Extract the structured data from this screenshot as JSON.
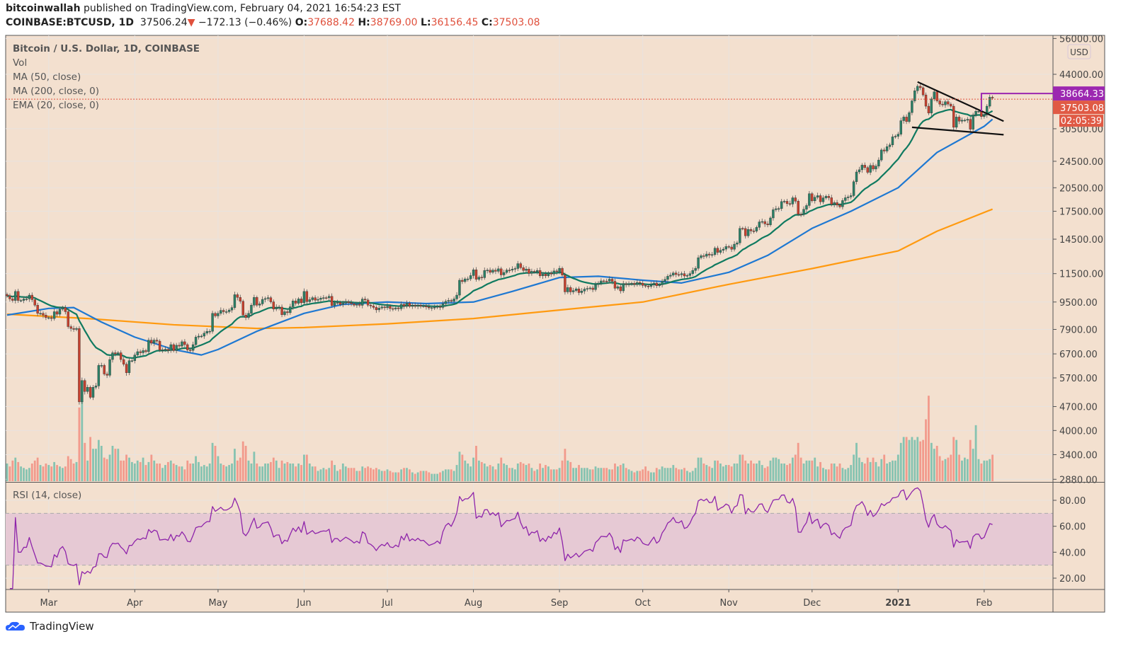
{
  "header": {
    "author": "bitcoinwallah",
    "published": "published on TradingView.com, February 04, 2021 16:54:23 EST",
    "symbol": "COINBASE:BTCUSD, 1D",
    "last": "37506.24",
    "change": "−172.13 (−0.46%)",
    "open_label": "O:",
    "open": "37688.42",
    "high_label": "H:",
    "high": "38769.00",
    "low_label": "L:",
    "low": "36156.45",
    "close_label": "C:",
    "close": "37503.08"
  },
  "legend": {
    "title": "Bitcoin / U.S. Dollar, 1D, COINBASE",
    "vol": "Vol",
    "ma50": "MA (50, close)",
    "ma200": "MA (200, close, 0)",
    "ema20": "EMA (20, close, 0)",
    "rsi": "RSI (14, close)"
  },
  "footer": {
    "brand": "TradingView"
  },
  "colors": {
    "background": "#f3e0cf",
    "up": "#2a8066",
    "down": "#c8402e",
    "vol_up": "#86c3b1",
    "vol_down": "#f29a8c",
    "ma50": "#1e78d2",
    "ma200": "#ff9a10",
    "ema20": "#0f7a60",
    "rsi": "#8e24aa",
    "rsi_band": "#e6c9d4",
    "horizontal_line": "#9c27b0",
    "price_label": "#e05a45"
  },
  "chart_data": {
    "type": "candlestick",
    "yscale": "log",
    "currency": "USD",
    "start_date": "2020-02-15",
    "closes": [
      9900,
      9700,
      9600,
      10200,
      9600,
      9600,
      9700,
      9700,
      9950,
      9650,
      9300,
      8800,
      8800,
      8700,
      8550,
      8550,
      8500,
      8900,
      8750,
      9050,
      9150,
      8900,
      8050,
      7950,
      7900,
      7950,
      4850,
      5600,
      5200,
      5350,
      5000,
      5350,
      5400,
      6200,
      6200,
      5850,
      5800,
      6450,
      6750,
      6700,
      6750,
      6450,
      6250,
      5900,
      6400,
      6400,
      6650,
      6800,
      6750,
      6850,
      6800,
      7350,
      7200,
      7350,
      7300,
      6870,
      6890,
      6910,
      6860,
      7130,
      6850,
      7100,
      7060,
      7270,
      7130,
      6880,
      6860,
      7130,
      7500,
      7550,
      7550,
      7700,
      7800,
      7800,
      8800,
      8650,
      8800,
      8980,
      8900,
      8900,
      9000,
      9150,
      9980,
      9800,
      9550,
      8700,
      8560,
      8800,
      9300,
      9800,
      9300,
      9380,
      9670,
      9720,
      9780,
      9510,
      9060,
      9170,
      9180,
      8720,
      8900,
      8840,
      9200,
      9570,
      9420,
      9700,
      9450,
      10200,
      9520,
      9650,
      9780,
      9620,
      9670,
      9750,
      9780,
      9770,
      9870,
      9280,
      9470,
      9470,
      9340,
      9430,
      9520,
      9460,
      9390,
      9300,
      9360,
      9290,
      9690,
      9630,
      9300,
      9250,
      9160,
      9010,
      9120,
      9190,
      9140,
      9230,
      9090,
      9070,
      9130,
      9080,
      9350,
      9250,
      9430,
      9230,
      9290,
      9240,
      9300,
      9240,
      9250,
      9190,
      9130,
      9150,
      9170,
      9210,
      9160,
      9390,
      9540,
      9600,
      9550,
      9700,
      9950,
      11000,
      10900,
      11100,
      11100,
      11350,
      11800,
      11070,
      11230,
      11190,
      11750,
      11770,
      11600,
      11770,
      11680,
      11880,
      11400,
      11590,
      11780,
      11770,
      11850,
      11900,
      12300,
      11970,
      11750,
      11860,
      11520,
      11680,
      11650,
      11750,
      11330,
      11460,
      11330,
      11540,
      11470,
      11710,
      11650,
      11920,
      11390,
      10170,
      10470,
      10170,
      10260,
      10380,
      10120,
      10230,
      10360,
      10400,
      10440,
      10330,
      10680,
      10790,
      10950,
      10940,
      10930,
      11080,
      10920,
      10420,
      10530,
      10240,
      10740,
      10690,
      10730,
      10770,
      10690,
      10840,
      10780,
      10620,
      10570,
      10550,
      10670,
      10790,
      10600,
      10670,
      10920,
      11060,
      11300,
      11380,
      11550,
      11430,
      11420,
      11500,
      11320,
      11360,
      11500,
      11750,
      11920,
      12800,
      12970,
      12930,
      13120,
      13030,
      13070,
      13650,
      13270,
      13450,
      13560,
      13800,
      13760,
      13550,
      14020,
      14150,
      15590,
      15580,
      14830,
      15480,
      15330,
      15310,
      15700,
      16290,
      16330,
      16070,
      15970,
      16730,
      17680,
      17800,
      17820,
      18680,
      18720,
      18420,
      18370,
      19160,
      18730,
      17150,
      17140,
      17730,
      18190,
      19700,
      18770,
      19230,
      19440,
      18650,
      19150,
      19360,
      19170,
      18330,
      18550,
      18250,
      18040,
      18810,
      19170,
      19280,
      19440,
      21350,
      22800,
      23140,
      23870,
      23480,
      22740,
      23820,
      23250,
      23720,
      24710,
      26440,
      26250,
      27040,
      27360,
      28880,
      28990,
      29400,
      32200,
      33000,
      32000,
      34000,
      36800,
      39400,
      40600,
      40200,
      38300,
      35500,
      33900,
      37300,
      39100,
      36800,
      36000,
      35800,
      36600,
      36000,
      35500,
      30800,
      33000,
      32100,
      32300,
      32300,
      32500,
      30400,
      33500,
      34300,
      34300,
      33100,
      33500,
      35500,
      37700,
      37500
    ],
    "volume_thousands": [
      12,
      10,
      14,
      16,
      13,
      10,
      9,
      8,
      9,
      12,
      14,
      16,
      11,
      10,
      12,
      11,
      10,
      13,
      11,
      10,
      9,
      10,
      17,
      15,
      12,
      13,
      50,
      60,
      26,
      14,
      30,
      22,
      22,
      28,
      24,
      16,
      15,
      18,
      24,
      22,
      22,
      14,
      14,
      18,
      16,
      13,
      12,
      14,
      13,
      16,
      11,
      13,
      18,
      14,
      12,
      12,
      9,
      11,
      13,
      14,
      12,
      11,
      10,
      10,
      8,
      14,
      12,
      12,
      17,
      13,
      10,
      11,
      10,
      12,
      26,
      24,
      17,
      12,
      11,
      10,
      11,
      12,
      22,
      14,
      16,
      27,
      24,
      14,
      12,
      20,
      12,
      10,
      10,
      12,
      12,
      13,
      16,
      14,
      9,
      14,
      12,
      13,
      12,
      12,
      10,
      12,
      11,
      18,
      18,
      12,
      10,
      10,
      7,
      8,
      9,
      8,
      9,
      14,
      11,
      7,
      8,
      12,
      10,
      9,
      9,
      9,
      7,
      7,
      10,
      9,
      10,
      9,
      8,
      9,
      8,
      7,
      7,
      8,
      7,
      6,
      6,
      6,
      8,
      9,
      9,
      8,
      6,
      5,
      6,
      7,
      7,
      7,
      6,
      5,
      5,
      5,
      6,
      7,
      8,
      8,
      8,
      7,
      11,
      20,
      18,
      14,
      12,
      10,
      16,
      24,
      14,
      13,
      12,
      10,
      11,
      10,
      8,
      12,
      16,
      12,
      11,
      9,
      9,
      8,
      12,
      13,
      12,
      11,
      12,
      9,
      7,
      8,
      12,
      9,
      11,
      10,
      8,
      8,
      8,
      9,
      14,
      22,
      14,
      13,
      9,
      9,
      11,
      9,
      9,
      9,
      8,
      8,
      10,
      9,
      9,
      9,
      9,
      8,
      8,
      12,
      10,
      11,
      12,
      9,
      8,
      7,
      6,
      7,
      7,
      8,
      10,
      7,
      6,
      6,
      9,
      8,
      10,
      9,
      9,
      9,
      11,
      9,
      8,
      8,
      9,
      7,
      6,
      7,
      9,
      16,
      16,
      12,
      11,
      10,
      9,
      14,
      14,
      12,
      10,
      11,
      11,
      10,
      12,
      12,
      18,
      18,
      14,
      12,
      14,
      12,
      12,
      14,
      11,
      9,
      10,
      14,
      16,
      16,
      15,
      12,
      12,
      11,
      12,
      16,
      18,
      26,
      16,
      12,
      14,
      14,
      14,
      16,
      10,
      13,
      9,
      8,
      8,
      12,
      12,
      10,
      12,
      9,
      8,
      9,
      11,
      18,
      26,
      16,
      13,
      12,
      16,
      13,
      16,
      13,
      10,
      15,
      18,
      12,
      13,
      14,
      14,
      18,
      26,
      30,
      30,
      28,
      30,
      28,
      30,
      27,
      28,
      42,
      58,
      26,
      22,
      24,
      17,
      14,
      15,
      16,
      18,
      30,
      28,
      18,
      14,
      16,
      15,
      28,
      22,
      38,
      15,
      12,
      14,
      14,
      15,
      18
    ],
    "ma50": [
      [
        "2020-02-15",
        8700
      ],
      [
        "2020-03-01",
        9100
      ],
      [
        "2020-03-10",
        9150
      ],
      [
        "2020-03-20",
        8300
      ],
      [
        "2020-04-01",
        7500
      ],
      [
        "2020-04-15",
        6900
      ],
      [
        "2020-04-25",
        6650
      ],
      [
        "2020-05-01",
        6900
      ],
      [
        "2020-05-15",
        7800
      ],
      [
        "2020-06-01",
        8800
      ],
      [
        "2020-06-15",
        9350
      ],
      [
        "2020-07-01",
        9500
      ],
      [
        "2020-07-15",
        9400
      ],
      [
        "2020-08-01",
        9500
      ],
      [
        "2020-08-15",
        10200
      ],
      [
        "2020-09-01",
        11200
      ],
      [
        "2020-09-15",
        11300
      ],
      [
        "2020-10-01",
        11000
      ],
      [
        "2020-10-15",
        10800
      ],
      [
        "2020-11-01",
        11600
      ],
      [
        "2020-11-15",
        13000
      ],
      [
        "2020-12-01",
        15600
      ],
      [
        "2020-12-15",
        17500
      ],
      [
        "2021-01-01",
        20500
      ],
      [
        "2021-01-15",
        26000
      ],
      [
        "2021-02-01",
        31000
      ],
      [
        "2021-02-04",
        32500
      ]
    ],
    "ma200": [
      [
        "2020-02-15",
        8750
      ],
      [
        "2020-03-15",
        8500
      ],
      [
        "2020-04-15",
        8150
      ],
      [
        "2020-05-15",
        7950
      ],
      [
        "2020-06-01",
        8000
      ],
      [
        "2020-07-01",
        8200
      ],
      [
        "2020-08-01",
        8500
      ],
      [
        "2020-09-01",
        9000
      ],
      [
        "2020-10-01",
        9500
      ],
      [
        "2020-11-01",
        10700
      ],
      [
        "2020-12-01",
        11900
      ],
      [
        "2021-01-01",
        13400
      ],
      [
        "2021-01-15",
        15300
      ],
      [
        "2021-02-04",
        17750
      ]
    ],
    "trendlines": [
      {
        "from": [
          "2021-01-08",
          41800
        ],
        "to": [
          "2021-02-08",
          32100
        ]
      },
      {
        "from": [
          "2021-01-06",
          30800
        ],
        "to": [
          "2021-02-08",
          29300
        ]
      }
    ],
    "horizontal_line": {
      "from_date": "2021-01-31",
      "value": "38664.33"
    },
    "last_price_label": "37503.08",
    "countdown": "02:05:39",
    "y_ticks": [
      "56000.00",
      "44000.00",
      "30500.00",
      "24500.00",
      "20500.00",
      "17500.00",
      "14500.00",
      "11500.00",
      "9500.00",
      "7900.00",
      "6700.00",
      "5700.00",
      "4700.00",
      "4000.00",
      "3400.00",
      "2880.00"
    ],
    "rsi_ticks": [
      "80.00",
      "60.00",
      "40.00",
      "20.00"
    ],
    "rsi_bands": [
      30,
      70
    ],
    "x_ticks": [
      [
        "2020-03-01",
        "Mar"
      ],
      [
        "2020-04-01",
        "Apr"
      ],
      [
        "2020-05-01",
        "May"
      ],
      [
        "2020-06-01",
        "Jun"
      ],
      [
        "2020-07-01",
        "Jul"
      ],
      [
        "2020-08-01",
        "Aug"
      ],
      [
        "2020-09-01",
        "Sep"
      ],
      [
        "2020-10-01",
        "Oct"
      ],
      [
        "2020-11-01",
        "Nov"
      ],
      [
        "2020-12-01",
        "Dec"
      ],
      [
        "2021-01-01",
        "2021"
      ],
      [
        "2021-02-01",
        "Feb"
      ]
    ]
  }
}
